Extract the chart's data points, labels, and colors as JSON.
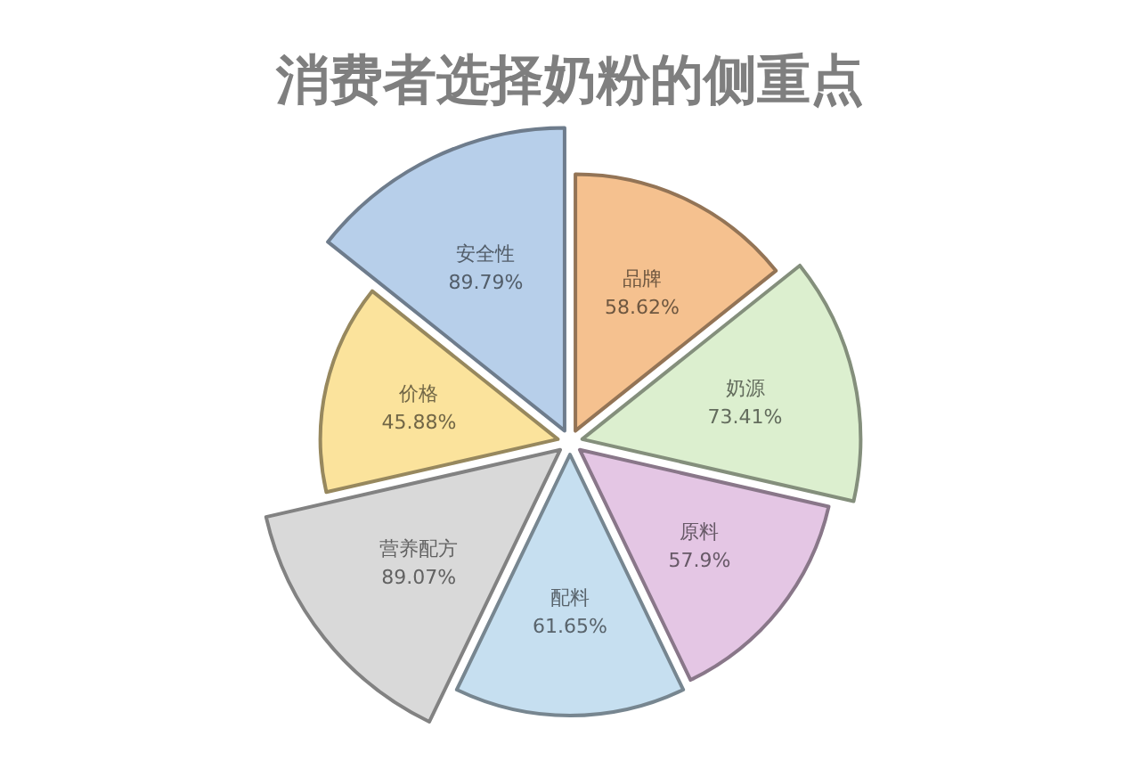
{
  "chart_data": {
    "type": "other",
    "title": "消费者选择奶粉的侧重点",
    "categories": [
      "品牌",
      "奶源",
      "原料",
      "配料",
      "营养配方",
      "价格",
      "安全性"
    ],
    "values": [
      58.62,
      73.41,
      57.9,
      61.65,
      89.07,
      45.88,
      89.79
    ],
    "colors": [
      "#f5c18f",
      "#dcefcf",
      "#e4c6e4",
      "#c6dff0",
      "#d9d9d9",
      "#fbe39c",
      "#b7cfea"
    ],
    "value_labels": [
      "58.62%",
      "73.41%",
      "57.9%",
      "61.65%",
      "89.07%",
      "45.88%",
      "89.79%"
    ]
  }
}
